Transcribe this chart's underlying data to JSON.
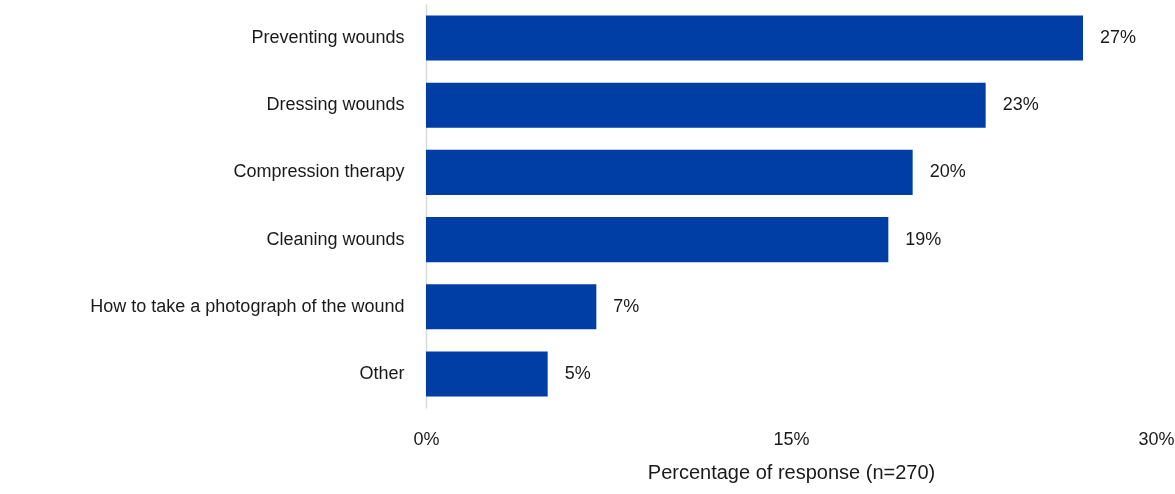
{
  "chart_data": {
    "type": "bar",
    "orientation": "horizontal",
    "categories": [
      "Preventing wounds",
      "Dressing wounds",
      "Compression therapy",
      "Cleaning wounds",
      "How to take a photograph of the wound",
      "Other"
    ],
    "values": [
      27,
      23,
      20,
      19,
      7,
      5
    ],
    "color": "#003da5",
    "value_labels": [
      "27%",
      "23%",
      "20%",
      "19%",
      "7%",
      "5%"
    ],
    "xlabel": "Percentage of response (n=270)",
    "xlim": [
      0,
      30
    ],
    "xticks": [
      {
        "value": 0,
        "label": "0%"
      },
      {
        "value": 15,
        "label": "15%"
      },
      {
        "value": 30,
        "label": "30%"
      }
    ],
    "grid": false
  }
}
